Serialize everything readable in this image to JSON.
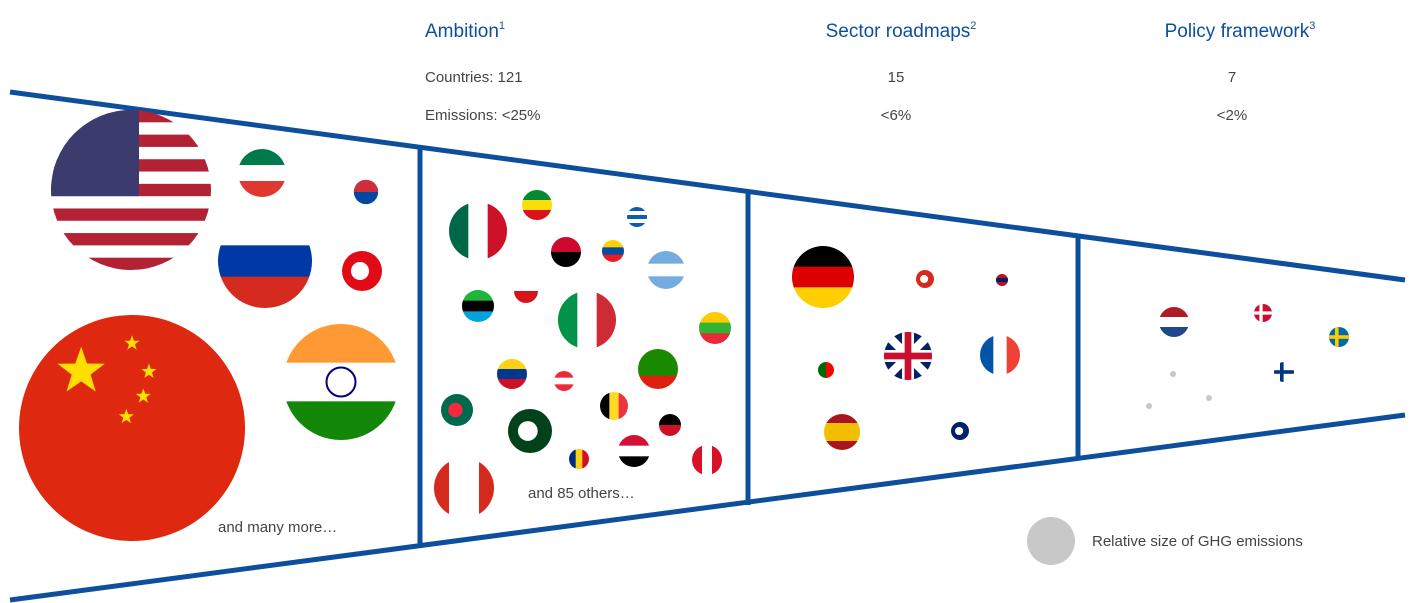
{
  "columns": [
    {
      "title": "Ambition",
      "note": "1",
      "countries": 121,
      "emissions": "<25%"
    },
    {
      "title": "Sector roadmaps",
      "note": "2",
      "countries": 15,
      "emissions": "<6%"
    },
    {
      "title": "Policy framework",
      "note": "3",
      "countries": 7,
      "emissions": "<2%"
    }
  ],
  "row_labels": {
    "countries": "Countries:",
    "emissions": "Emissions:"
  },
  "notes": [
    "and many more…",
    "and 85 others…"
  ],
  "legend": "Relative size of GHG emissions"
}
